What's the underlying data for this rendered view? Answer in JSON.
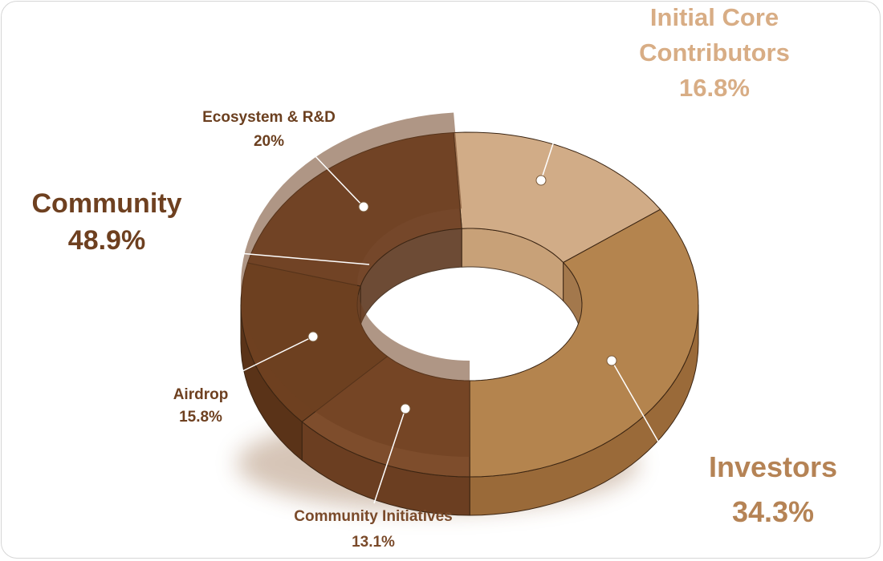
{
  "chart_data": {
    "type": "pie",
    "style": "3d-donut",
    "groups": [
      {
        "name": "Community",
        "value_label": "48.9%",
        "value": 48.9,
        "color": "#6e4020",
        "members": [
          "Ecosystem & R&D",
          "Airdrop",
          "Community Initiatives"
        ]
      }
    ],
    "slices": [
      {
        "name": "Initial Core Contributors",
        "label_lines": [
          "Initial Core",
          "Contributors"
        ],
        "value": 16.8,
        "value_label": "16.8%",
        "color": "#d1ac87",
        "side": "#c3976a",
        "label_color": "#d8ad85"
      },
      {
        "name": "Investors",
        "label_lines": [
          "Investors"
        ],
        "value": 34.3,
        "value_label": "34.3%",
        "color": "#b4844e",
        "side": "#9a6a39",
        "label_color": "#b58355"
      },
      {
        "name": "Community Initiatives",
        "label_lines": [
          "Community Initiatives"
        ],
        "value": 13.1,
        "value_label": "13.1%",
        "color": "#7e4d2c",
        "side": "#6b3e21",
        "label_color": "#7a4a2a"
      },
      {
        "name": "Airdrop",
        "label_lines": [
          "Airdrop"
        ],
        "value": 15.8,
        "value_label": "15.8%",
        "color": "#6e4020",
        "side": "#5a3318",
        "label_color": "#6e4020"
      },
      {
        "name": "Ecosystem & R&D",
        "label_lines": [
          "Ecosystem & R&D"
        ],
        "value": 20,
        "value_label": "20%",
        "color": "#75472a",
        "side": "#5e3820",
        "label_color": "#6b3f1f"
      }
    ],
    "legend": "none"
  }
}
